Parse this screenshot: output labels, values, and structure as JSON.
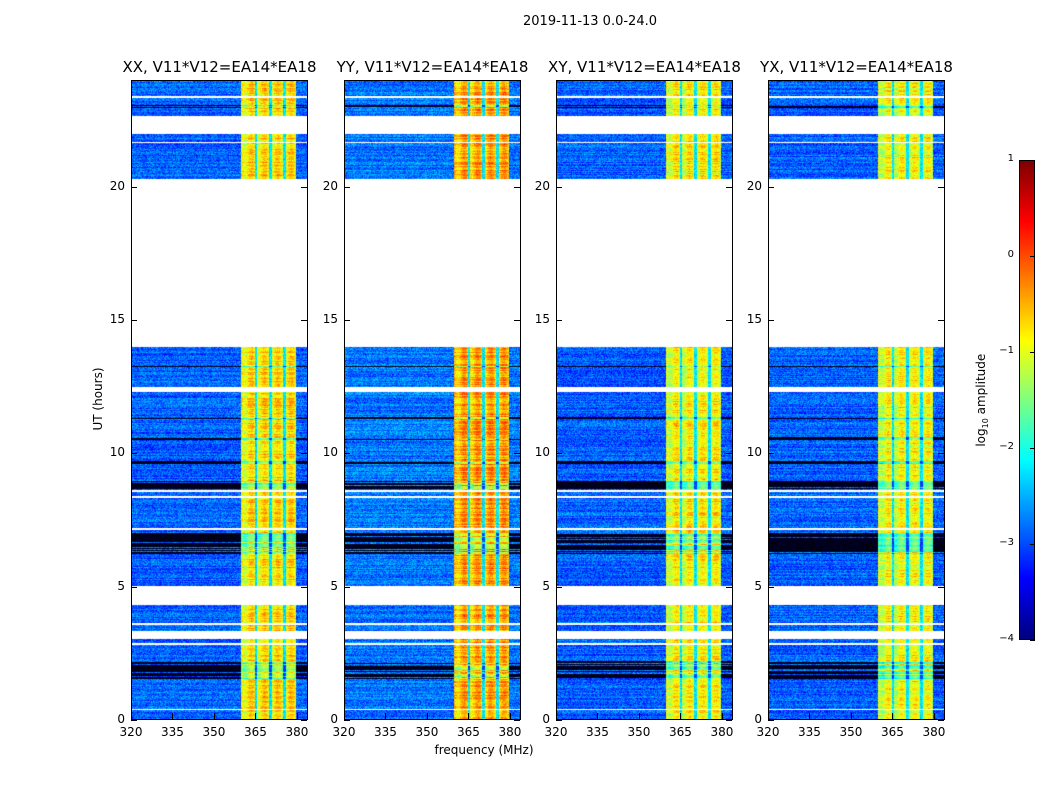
{
  "chart_data": {
    "type": "heatmap",
    "title": "2019-11-13 0.0-24.0",
    "xlabel": "frequency (MHz)",
    "ylabel": "UT (hours)",
    "xlim": [
      320,
      384
    ],
    "ylim": [
      0,
      24
    ],
    "xticks": [
      "320",
      "335",
      "350",
      "365",
      "380"
    ],
    "yticks": [
      "0",
      "5",
      "10",
      "15",
      "20"
    ],
    "colorbar": {
      "label": "log10 amplitude",
      "label_main": "log",
      "label_sub": "10",
      "label_rest": " amplitude",
      "range": [
        -4,
        1
      ],
      "ticks": [
        "1",
        "0",
        "−1",
        "−2",
        "−3",
        "−4"
      ],
      "colormap": "jet"
    },
    "panels": [
      {
        "title": "XX, V11*V12=EA14*EA18",
        "band_level": -0.8,
        "background_level": -2.9
      },
      {
        "title": "YY, V11*V12=EA14*EA18",
        "band_level": -0.5,
        "background_level": -2.8
      },
      {
        "title": "XY, V11*V12=EA14*EA18",
        "band_level": -0.9,
        "background_level": -2.9
      },
      {
        "title": "YX, V11*V12=EA14*EA18",
        "band_level": -1.0,
        "background_level": -2.9
      }
    ],
    "bright_band_mhz": [
      360,
      380
    ],
    "band_dark_lines_mhz": [
      365.3,
      370.6,
      375.8
    ],
    "flagged_hours": [
      [
        23.35,
        23.45
      ],
      [
        22.0,
        22.7
      ],
      [
        21.65,
        21.72
      ],
      [
        14.0,
        20.3
      ],
      [
        12.3,
        12.5
      ],
      [
        8.55,
        8.62
      ],
      [
        8.3,
        8.38
      ],
      [
        7.1,
        7.18
      ],
      [
        4.3,
        5.0
      ],
      [
        3.55,
        3.6
      ],
      [
        3.0,
        3.3
      ],
      [
        2.8,
        2.85
      ],
      [
        0.33,
        0.38
      ]
    ],
    "dark_hours": [
      [
        6.2,
        7.0
      ],
      [
        1.5,
        2.2
      ],
      [
        8.65,
        8.95
      ],
      [
        9.6,
        9.7
      ],
      [
        10.5,
        10.6
      ],
      [
        11.3,
        11.35
      ],
      [
        13.2,
        13.28
      ],
      [
        23.0,
        23.1
      ]
    ]
  }
}
